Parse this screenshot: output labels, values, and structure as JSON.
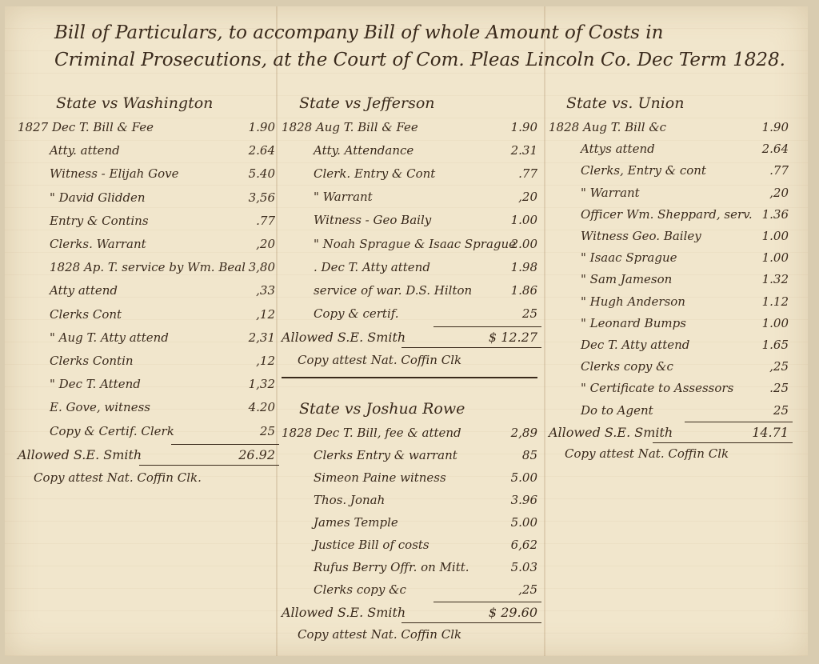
{
  "title": {
    "line1": "Bill of Particulars, to accompany Bill of whole Amount of Costs in",
    "line2": "Criminal Prosecutions, at the Court of Com. Pleas Lincoln Co. Dec Term 1828."
  },
  "cases": [
    {
      "heading": "State vs Washington",
      "entries": [
        {
          "item": "1827 Dec T. Bill & Fee",
          "amount": "1.90"
        },
        {
          "item": "Atty. attend",
          "amount": "2.64"
        },
        {
          "item": "Witness - Elijah Gove",
          "amount": "5.40"
        },
        {
          "item": "\" David Glidden",
          "amount": "3,56"
        },
        {
          "item": "Entry & Contins",
          "amount": ".77"
        },
        {
          "item": "Clerks. Warrant",
          "amount": ",20"
        },
        {
          "item": "1828 Ap. T. service by Wm. Beal",
          "amount": "3,80"
        },
        {
          "item": "Atty attend",
          "amount": ",33"
        },
        {
          "item": "Clerks Cont",
          "amount": ",12"
        },
        {
          "item": "\" Aug T. Atty attend",
          "amount": "2,31"
        },
        {
          "item": "Clerks Contin",
          "amount": ",12"
        },
        {
          "item": "\" Dec T. Attend",
          "amount": "1,32"
        },
        {
          "item": "E. Gove, witness",
          "amount": "4.20"
        },
        {
          "item": "Copy & Certif. Clerk",
          "amount": "25"
        }
      ],
      "allowed": "Allowed S.E. Smith",
      "total": "26.92",
      "attest": "Copy attest Nat. Coffin Clk."
    },
    {
      "heading": "State vs Jefferson",
      "entries": [
        {
          "item": "1828 Aug T. Bill & Fee",
          "amount": "1.90"
        },
        {
          "item": "Atty. Attendance",
          "amount": "2.31"
        },
        {
          "item": "Clerk. Entry & Cont",
          "amount": ".77"
        },
        {
          "item": "\" Warrant",
          "amount": ",20"
        },
        {
          "item": "Witness - Geo Baily",
          "amount": "1.00"
        },
        {
          "item": "\" Noah Sprague & Isaac Sprague",
          "amount": "2.00"
        },
        {
          "item": ". Dec T. Atty attend",
          "amount": "1.98"
        },
        {
          "item": "service of war. D.S. Hilton",
          "amount": "1.86"
        },
        {
          "item": "Copy & certif.",
          "amount": "25"
        }
      ],
      "allowed": "Allowed S.E. Smith",
      "total": "$ 12.27",
      "attest": "Copy attest Nat. Coffin Clk"
    },
    {
      "heading": "State vs Joshua Rowe",
      "entries": [
        {
          "item": "1828 Dec T. Bill, fee & attend",
          "amount": "2,89"
        },
        {
          "item": "Clerks Entry & warrant",
          "amount": "85"
        },
        {
          "item": "Simeon Paine witness",
          "amount": "5.00"
        },
        {
          "item": "Thos. Jonah",
          "amount": "3.96"
        },
        {
          "item": "James Temple",
          "amount": "5.00"
        },
        {
          "item": "Justice Bill of costs",
          "amount": "6,62"
        },
        {
          "item": "Rufus Berry Offr. on Mitt.",
          "amount": "5.03"
        },
        {
          "item": "Clerks copy &c",
          "amount": ",25"
        }
      ],
      "allowed": "Allowed S.E. Smith",
      "total": "$ 29.60",
      "attest": "Copy attest Nat. Coffin Clk"
    },
    {
      "heading": "State vs. Union",
      "entries": [
        {
          "item": "1828 Aug T. Bill &c",
          "amount": "1.90"
        },
        {
          "item": "Attys attend",
          "amount": "2.64"
        },
        {
          "item": "Clerks, Entry & cont",
          "amount": ".77"
        },
        {
          "item": "\" Warrant",
          "amount": ",20"
        },
        {
          "item": "Officer Wm. Sheppard, serv.",
          "amount": "1.36"
        },
        {
          "item": "Witness Geo. Bailey",
          "amount": "1.00"
        },
        {
          "item": "\" Isaac Sprague",
          "amount": "1.00"
        },
        {
          "item": "\" Sam Jameson",
          "amount": "1.32"
        },
        {
          "item": "\" Hugh Anderson",
          "amount": "1.12"
        },
        {
          "item": "\" Leonard Bumps",
          "amount": "1.00"
        },
        {
          "item": "Dec T. Atty attend",
          "amount": "1.65"
        },
        {
          "item": "Clerks copy &c",
          "amount": ",25"
        },
        {
          "item": "\" Certificate to Assessors",
          "amount": ".25"
        },
        {
          "item": "Do to Agent",
          "amount": "25"
        }
      ],
      "allowed": "Allowed S.E. Smith",
      "total": "14.71",
      "attest": "Copy attest Nat. Coffin Clk"
    }
  ],
  "colors": {
    "paper": "#f1e6cc",
    "ink": "#3a2a1c"
  }
}
